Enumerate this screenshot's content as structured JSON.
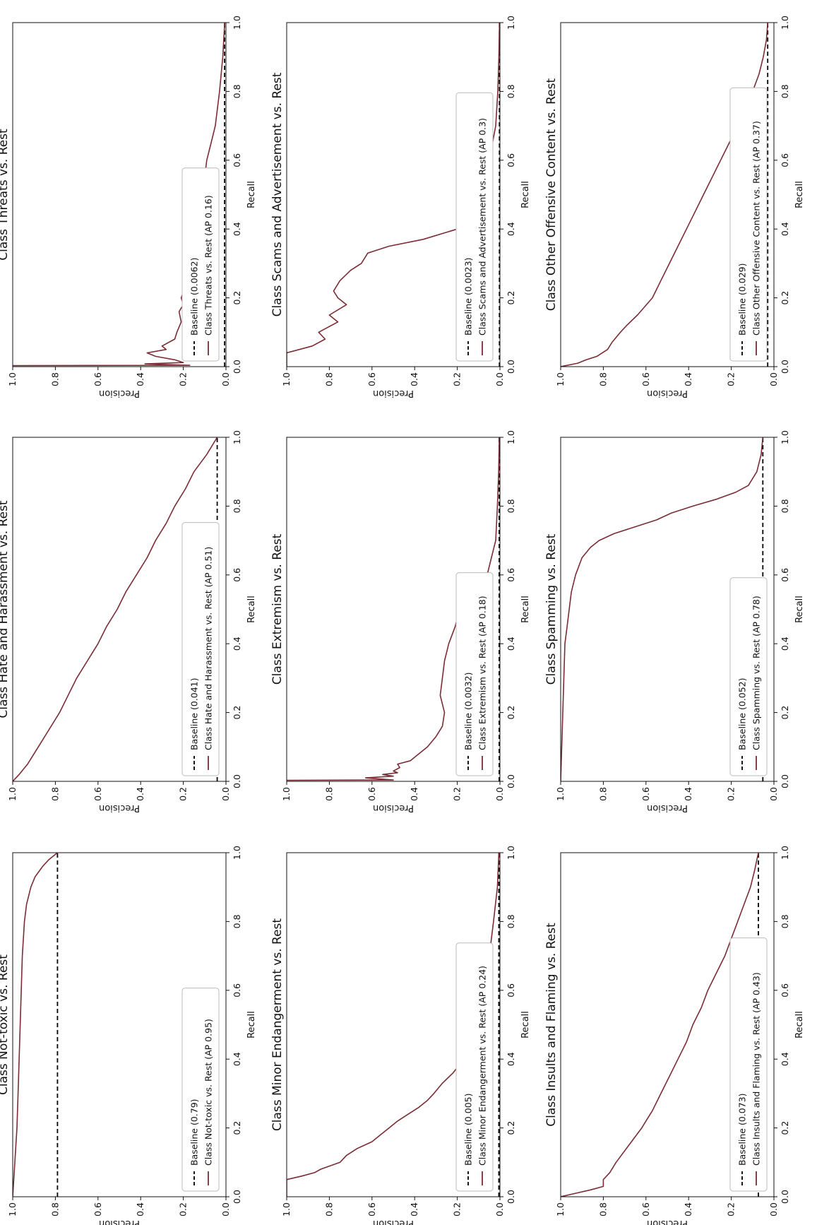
{
  "chart_data": [
    {
      "type": "line",
      "title": "Class Not-toxic vs. Rest",
      "xlabel": "Recall",
      "ylabel": "Precision",
      "xlim": [
        0,
        1
      ],
      "ylim": [
        0,
        1
      ],
      "xticks": [
        "0.0",
        "0.2",
        "0.4",
        "0.6",
        "0.8",
        "1.0"
      ],
      "yticks": [
        "0.0",
        "0.2",
        "0.4",
        "0.6",
        "0.8",
        "1.0"
      ],
      "legend_position": "lower-left",
      "series": [
        {
          "name": "Baseline (0.79)",
          "style": "dashed",
          "color": "#000000",
          "x": [
            0,
            1
          ],
          "y": [
            0.79,
            0.79
          ]
        },
        {
          "name": "Class Not-toxic vs. Rest (AP 0.95)",
          "style": "solid",
          "color": "#7b2c35",
          "x": [
            0.0,
            0.05,
            0.1,
            0.2,
            0.3,
            0.4,
            0.5,
            0.6,
            0.7,
            0.8,
            0.85,
            0.9,
            0.93,
            0.96,
            0.98,
            1.0
          ],
          "y": [
            1.0,
            0.995,
            0.99,
            0.98,
            0.975,
            0.97,
            0.965,
            0.96,
            0.955,
            0.945,
            0.935,
            0.915,
            0.895,
            0.86,
            0.83,
            0.79
          ]
        }
      ]
    },
    {
      "type": "line",
      "title": "Class Hate and Harassment vs. Rest",
      "xlabel": "Recall",
      "ylabel": "Precision",
      "xlim": [
        0,
        1
      ],
      "ylim": [
        0,
        1
      ],
      "xticks": [
        "0.0",
        "0.2",
        "0.4",
        "0.6",
        "0.8",
        "1.0"
      ],
      "yticks": [
        "0.0",
        "0.2",
        "0.4",
        "0.6",
        "0.8",
        "1.0"
      ],
      "legend_position": "lower-left",
      "series": [
        {
          "name": "Baseline (0.041)",
          "style": "dashed",
          "color": "#000000",
          "x": [
            0,
            1
          ],
          "y": [
            0.041,
            0.041
          ]
        },
        {
          "name": "Class Hate and Harassment vs. Rest (AP 0.51)",
          "style": "solid",
          "color": "#7b2c35",
          "x": [
            0.0,
            0.02,
            0.05,
            0.1,
            0.15,
            0.2,
            0.25,
            0.3,
            0.35,
            0.4,
            0.45,
            0.5,
            0.55,
            0.6,
            0.65,
            0.7,
            0.75,
            0.8,
            0.85,
            0.9,
            0.95,
            1.0
          ],
          "y": [
            1.0,
            0.97,
            0.93,
            0.88,
            0.83,
            0.78,
            0.74,
            0.7,
            0.65,
            0.6,
            0.56,
            0.51,
            0.47,
            0.42,
            0.37,
            0.33,
            0.28,
            0.24,
            0.19,
            0.15,
            0.09,
            0.041
          ]
        }
      ]
    },
    {
      "type": "line",
      "title": "Class Threats vs. Rest",
      "xlabel": "Recall",
      "ylabel": "Precision",
      "xlim": [
        0,
        1
      ],
      "ylim": [
        0,
        1
      ],
      "xticks": [
        "0.0",
        "0.2",
        "0.4",
        "0.6",
        "0.8",
        "1.0"
      ],
      "yticks": [
        "0.0",
        "0.2",
        "0.4",
        "0.6",
        "0.8",
        "1.0"
      ],
      "legend_position": "lower-left",
      "series": [
        {
          "name": "Baseline (0.0062)",
          "style": "dashed",
          "color": "#000000",
          "x": [
            0,
            1
          ],
          "y": [
            0.0062,
            0.0062
          ]
        },
        {
          "name": "Class Threats vs. Rest (AP 0.16)",
          "style": "solid",
          "color": "#7b2c35",
          "x": [
            0.003,
            0.004,
            0.008,
            0.012,
            0.02,
            0.03,
            0.04,
            0.05,
            0.06,
            0.08,
            0.1,
            0.13,
            0.16,
            0.18,
            0.2,
            0.25,
            0.3,
            0.35,
            0.4,
            0.45,
            0.5,
            0.55,
            0.6,
            0.65,
            0.7,
            0.8,
            0.9,
            1.0
          ],
          "y": [
            1.0,
            0.17,
            0.38,
            0.2,
            0.24,
            0.33,
            0.37,
            0.28,
            0.3,
            0.24,
            0.23,
            0.21,
            0.22,
            0.2,
            0.21,
            0.18,
            0.16,
            0.145,
            0.13,
            0.12,
            0.11,
            0.1,
            0.09,
            0.07,
            0.05,
            0.03,
            0.015,
            0.006
          ]
        }
      ]
    },
    {
      "type": "line",
      "title": "Class Minor Endangerment vs. Rest",
      "xlabel": "Recall",
      "ylabel": "Precision",
      "xlim": [
        0,
        1
      ],
      "ylim": [
        0,
        1
      ],
      "xticks": [
        "0.0",
        "0.2",
        "0.4",
        "0.6",
        "0.8",
        "1.0"
      ],
      "yticks": [
        "0.0",
        "0.2",
        "0.4",
        "0.6",
        "0.8",
        "1.0"
      ],
      "legend_position": "lower-left",
      "series": [
        {
          "name": "Baseline (0.005)",
          "style": "dashed",
          "color": "#000000",
          "x": [
            0,
            1
          ],
          "y": [
            0.005,
            0.005
          ]
        },
        {
          "name": "Class Minor Endangerment vs. Rest (AP 0.24)",
          "style": "solid",
          "color": "#7b2c35",
          "x": [
            0.0,
            0.05,
            0.06,
            0.07,
            0.08,
            0.1,
            0.12,
            0.14,
            0.16,
            0.18,
            0.2,
            0.22,
            0.24,
            0.26,
            0.28,
            0.3,
            0.33,
            0.36,
            0.4,
            0.45,
            0.5,
            0.55,
            0.6,
            0.7,
            0.8,
            0.9,
            1.0
          ],
          "y": [
            1.0,
            1.0,
            0.93,
            0.87,
            0.84,
            0.75,
            0.72,
            0.67,
            0.6,
            0.56,
            0.52,
            0.48,
            0.43,
            0.38,
            0.34,
            0.31,
            0.27,
            0.22,
            0.17,
            0.14,
            0.11,
            0.09,
            0.07,
            0.05,
            0.03,
            0.012,
            0.005
          ]
        }
      ]
    },
    {
      "type": "line",
      "title": "Class Extremism vs. Rest",
      "xlabel": "Recall",
      "ylabel": "Precision",
      "xlim": [
        0,
        1
      ],
      "ylim": [
        0,
        1
      ],
      "xticks": [
        "0.0",
        "0.2",
        "0.4",
        "0.6",
        "0.8",
        "1.0"
      ],
      "yticks": [
        "0.0",
        "0.2",
        "0.4",
        "0.6",
        "0.8",
        "1.0"
      ],
      "legend_position": "lower-left",
      "series": [
        {
          "name": "Baseline (0.0032)",
          "style": "dashed",
          "color": "#000000",
          "x": [
            0,
            1
          ],
          "y": [
            0.0032,
            0.0032
          ]
        },
        {
          "name": "Class Extremism vs. Rest (AP 0.18)",
          "style": "solid",
          "color": "#7b2c35",
          "x": [
            0.003,
            0.004,
            0.01,
            0.015,
            0.02,
            0.025,
            0.03,
            0.04,
            0.05,
            0.06,
            0.08,
            0.1,
            0.13,
            0.16,
            0.2,
            0.25,
            0.3,
            0.35,
            0.4,
            0.45,
            0.5,
            0.55,
            0.56,
            0.6,
            0.65,
            0.7,
            0.8,
            0.9,
            1.0
          ],
          "y": [
            1.0,
            0.5,
            0.63,
            0.5,
            0.55,
            0.48,
            0.5,
            0.47,
            0.48,
            0.42,
            0.38,
            0.34,
            0.3,
            0.27,
            0.26,
            0.28,
            0.27,
            0.26,
            0.24,
            0.21,
            0.19,
            0.17,
            0.08,
            0.06,
            0.04,
            0.02,
            0.012,
            0.006,
            0.003
          ]
        }
      ]
    },
    {
      "type": "line",
      "title": "Class Scams and Advertisement vs. Rest",
      "xlabel": "Recall",
      "ylabel": "Precision",
      "xlim": [
        0,
        1
      ],
      "ylim": [
        0,
        1
      ],
      "xticks": [
        "0.0",
        "0.2",
        "0.4",
        "0.6",
        "0.8",
        "1.0"
      ],
      "yticks": [
        "0.0",
        "0.2",
        "0.4",
        "0.6",
        "0.8",
        "1.0"
      ],
      "legend_position": "lower-left",
      "series": [
        {
          "name": "Baseline (0.0023)",
          "style": "dashed",
          "color": "#000000",
          "x": [
            0,
            1
          ],
          "y": [
            0.0023,
            0.0023
          ]
        },
        {
          "name": "Class Scams and Advertisement vs. Rest (AP 0.3)",
          "style": "solid",
          "color": "#7b2c35",
          "x": [
            0.0,
            0.04,
            0.06,
            0.08,
            0.1,
            0.13,
            0.15,
            0.18,
            0.2,
            0.22,
            0.25,
            0.28,
            0.3,
            0.33,
            0.35,
            0.37,
            0.4,
            0.42,
            0.45,
            0.5,
            0.6,
            0.7,
            0.8,
            0.9,
            1.0
          ],
          "y": [
            1.0,
            1.0,
            0.88,
            0.82,
            0.85,
            0.76,
            0.8,
            0.72,
            0.76,
            0.78,
            0.75,
            0.7,
            0.65,
            0.62,
            0.52,
            0.36,
            0.2,
            0.15,
            0.12,
            0.1,
            0.05,
            0.02,
            0.01,
            0.005,
            0.002
          ]
        }
      ]
    },
    {
      "type": "line",
      "title": "Class Insults and Flaming vs. Rest",
      "xlabel": "Recall",
      "ylabel": "Precision",
      "xlim": [
        0,
        1
      ],
      "ylim": [
        0,
        1
      ],
      "xticks": [
        "0.0",
        "0.2",
        "0.4",
        "0.6",
        "0.8",
        "1.0"
      ],
      "yticks": [
        "0.0",
        "0.2",
        "0.4",
        "0.6",
        "0.8",
        "1.0"
      ],
      "legend_position": "lower-left",
      "series": [
        {
          "name": "Baseline (0.073)",
          "style": "dashed",
          "color": "#000000",
          "x": [
            0,
            1
          ],
          "y": [
            0.073,
            0.073
          ]
        },
        {
          "name": "Class Insults and Flaming vs. Rest (AP 0.43)",
          "style": "solid",
          "color": "#7b2c35",
          "x": [
            0.0,
            0.01,
            0.02,
            0.03,
            0.05,
            0.07,
            0.1,
            0.15,
            0.2,
            0.25,
            0.3,
            0.35,
            0.4,
            0.45,
            0.5,
            0.55,
            0.6,
            0.65,
            0.7,
            0.75,
            0.8,
            0.85,
            0.9,
            0.95,
            1.0
          ],
          "y": [
            1.0,
            0.93,
            0.86,
            0.8,
            0.8,
            0.77,
            0.74,
            0.68,
            0.62,
            0.57,
            0.53,
            0.49,
            0.45,
            0.41,
            0.38,
            0.34,
            0.31,
            0.27,
            0.23,
            0.2,
            0.17,
            0.14,
            0.11,
            0.09,
            0.073
          ]
        }
      ]
    },
    {
      "type": "line",
      "title": "Class Spamming vs. Rest",
      "xlabel": "Recall",
      "ylabel": "Precision",
      "xlim": [
        0,
        1
      ],
      "ylim": [
        0,
        1
      ],
      "xticks": [
        "0.0",
        "0.2",
        "0.4",
        "0.6",
        "0.8",
        "1.0"
      ],
      "yticks": [
        "0.0",
        "0.2",
        "0.4",
        "0.6",
        "0.8",
        "1.0"
      ],
      "legend_position": "lower-left",
      "series": [
        {
          "name": "Baseline (0.052)",
          "style": "dashed",
          "color": "#000000",
          "x": [
            0,
            1
          ],
          "y": [
            0.052,
            0.052
          ]
        },
        {
          "name": "Class Spamming vs. Rest (AP 0.78)",
          "style": "solid",
          "color": "#7b2c35",
          "x": [
            0.0,
            0.1,
            0.2,
            0.3,
            0.4,
            0.45,
            0.5,
            0.55,
            0.6,
            0.65,
            0.68,
            0.7,
            0.72,
            0.74,
            0.76,
            0.78,
            0.8,
            0.82,
            0.84,
            0.86,
            0.9,
            0.95,
            1.0
          ],
          "y": [
            1.0,
            0.995,
            0.99,
            0.985,
            0.98,
            0.97,
            0.96,
            0.95,
            0.93,
            0.9,
            0.86,
            0.82,
            0.75,
            0.65,
            0.55,
            0.48,
            0.38,
            0.27,
            0.18,
            0.12,
            0.08,
            0.06,
            0.052
          ]
        }
      ]
    },
    {
      "type": "line",
      "title": "Class Other Offensive Content vs. Rest",
      "xlabel": "Recall",
      "ylabel": "Precision",
      "xlim": [
        0,
        1
      ],
      "ylim": [
        0,
        1
      ],
      "xticks": [
        "0.0",
        "0.2",
        "0.4",
        "0.6",
        "0.8",
        "1.0"
      ],
      "yticks": [
        "0.0",
        "0.2",
        "0.4",
        "0.6",
        "0.8",
        "1.0"
      ],
      "legend_position": "lower-left",
      "series": [
        {
          "name": "Baseline (0.029)",
          "style": "dashed",
          "color": "#000000",
          "x": [
            0,
            1
          ],
          "y": [
            0.029,
            0.029
          ]
        },
        {
          "name": "Class Other Offensive Content vs. Rest (AP 0.37)",
          "style": "solid",
          "color": "#7b2c35",
          "x": [
            0.0,
            0.01,
            0.02,
            0.03,
            0.05,
            0.07,
            0.1,
            0.12,
            0.15,
            0.2,
            0.25,
            0.3,
            0.35,
            0.4,
            0.45,
            0.5,
            0.55,
            0.6,
            0.65,
            0.7,
            0.75,
            0.8,
            0.85,
            0.9,
            0.95,
            1.0
          ],
          "y": [
            1.0,
            0.92,
            0.88,
            0.83,
            0.78,
            0.76,
            0.72,
            0.69,
            0.64,
            0.57,
            0.53,
            0.49,
            0.45,
            0.41,
            0.37,
            0.33,
            0.29,
            0.25,
            0.21,
            0.17,
            0.13,
            0.1,
            0.07,
            0.05,
            0.035,
            0.029
          ]
        }
      ]
    }
  ]
}
